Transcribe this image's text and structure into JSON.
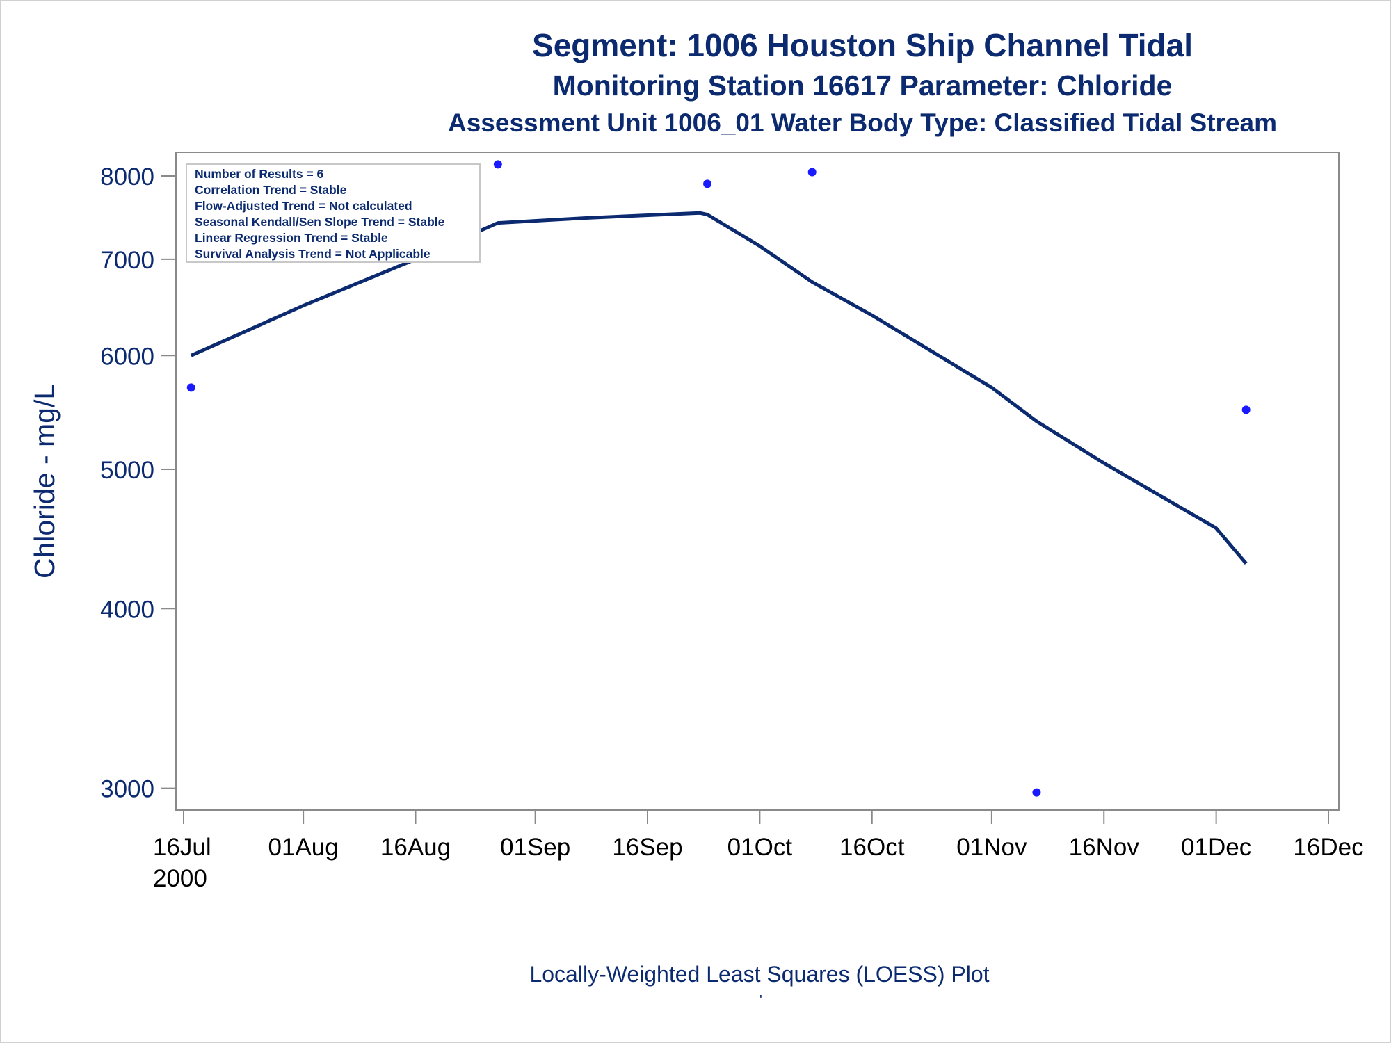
{
  "chart_data": {
    "type": "scatter",
    "title": "Segment: 1006  Houston Ship Channel Tidal",
    "subtitle": "Monitoring Station 16617 Parameter: Chloride",
    "subtitle2": "Assessment Unit 1006_01   Water Body Type: Classified Tidal Stream",
    "xlabel": "",
    "ylabel": "Chloride - mg/L",
    "footer": "Locally-Weighted Least Squares (LOESS) Plot",
    "footer_mark": "'",
    "y_scale": "log",
    "ylim": [
      2900,
      8300
    ],
    "xlim": [
      "2000-07-16",
      "2000-12-16"
    ],
    "grid": false,
    "y_ticks": [
      3000,
      4000,
      5000,
      6000,
      7000,
      8000
    ],
    "x_ticks": [
      {
        "date": "2000-07-16",
        "label": "16Jul",
        "sublabel": "2000"
      },
      {
        "date": "2000-08-01",
        "label": "01Aug"
      },
      {
        "date": "2000-08-16",
        "label": "16Aug"
      },
      {
        "date": "2000-09-01",
        "label": "01Sep"
      },
      {
        "date": "2000-09-16",
        "label": "16Sep"
      },
      {
        "date": "2000-10-01",
        "label": "01Oct"
      },
      {
        "date": "2000-10-16",
        "label": "16Oct"
      },
      {
        "date": "2000-11-01",
        "label": "01Nov"
      },
      {
        "date": "2000-11-16",
        "label": "16Nov"
      },
      {
        "date": "2000-12-01",
        "label": "01Dec"
      },
      {
        "date": "2000-12-16",
        "label": "16Dec"
      }
    ],
    "legend_placement": "top-left",
    "stats_box": [
      "Number of Results = 6",
      "Correlation Trend = Stable",
      "Flow-Adjusted Trend = Not calculated",
      "Seasonal Kendall/Sen Slope Trend = Stable",
      "Linear Regression Trend = Stable",
      "Survival Analysis Trend = Not Applicable"
    ],
    "series": [
      {
        "type": "scatter",
        "color": "#1a1aff",
        "points": [
          {
            "x": "2000-07-17",
            "y": 5700
          },
          {
            "x": "2000-08-27",
            "y": 8150
          },
          {
            "x": "2000-09-24",
            "y": 7900
          },
          {
            "x": "2000-10-08",
            "y": 8050
          },
          {
            "x": "2000-11-07",
            "y": 2980
          },
          {
            "x": "2000-12-05",
            "y": 5500
          }
        ]
      },
      {
        "type": "line",
        "color": "#0b2a6f",
        "points": [
          {
            "x": "2000-07-17",
            "y": 6000
          },
          {
            "x": "2000-08-01",
            "y": 6500
          },
          {
            "x": "2000-08-16",
            "y": 7000
          },
          {
            "x": "2000-08-27",
            "y": 7420
          },
          {
            "x": "2000-09-08",
            "y": 7480
          },
          {
            "x": "2000-09-23",
            "y": 7540
          },
          {
            "x": "2000-09-24",
            "y": 7520
          },
          {
            "x": "2000-10-01",
            "y": 7150
          },
          {
            "x": "2000-10-08",
            "y": 6750
          },
          {
            "x": "2000-10-16",
            "y": 6400
          },
          {
            "x": "2000-11-01",
            "y": 5700
          },
          {
            "x": "2000-11-07",
            "y": 5400
          },
          {
            "x": "2000-11-16",
            "y": 5050
          },
          {
            "x": "2000-12-01",
            "y": 4550
          },
          {
            "x": "2000-12-05",
            "y": 4300
          }
        ]
      }
    ]
  }
}
